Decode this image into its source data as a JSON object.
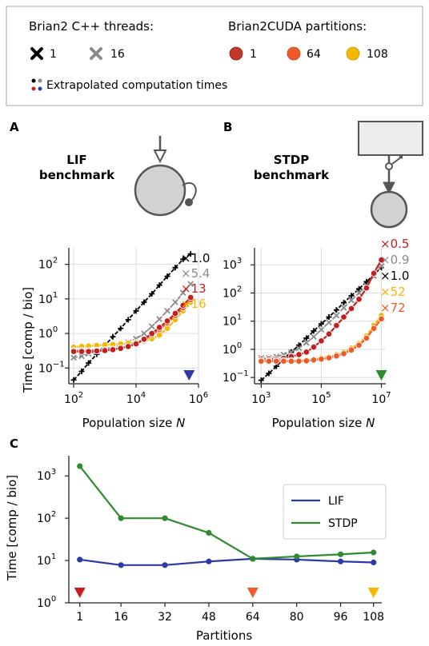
{
  "legend": {
    "cpp_title": "Brian2 C++ threads:",
    "cpp_entries": [
      {
        "label": "1",
        "color": "#000000"
      },
      {
        "label": "16",
        "color": "#8c8c8c"
      }
    ],
    "cuda_title": "Brian2CUDA partitions:",
    "cuda_entries": [
      {
        "label": "1",
        "color": "#c0392b"
      },
      {
        "label": "64",
        "color": "#f05a28"
      },
      {
        "label": "108",
        "color": "#f5b700"
      }
    ],
    "extrapolated_label": "Extrapolated computation times"
  },
  "panels": {
    "A": {
      "letter": "A",
      "title_line1": "LIF",
      "title_line2": "benchmark"
    },
    "B": {
      "letter": "B",
      "title_line1": "STDP",
      "title_line2": "benchmark"
    },
    "C": {
      "letter": "C"
    }
  },
  "colors": {
    "cpp1": "#000000",
    "cpp16": "#8c8c8c",
    "cuda1": "#c41e1e",
    "cuda64": "#f05a28",
    "cuda108": "#f5b700",
    "lif": "#2b3aa8",
    "stdp": "#2e8b2e"
  },
  "chart_data": [
    {
      "id": "A",
      "type": "line",
      "xscale": "log",
      "yscale": "log",
      "xlim": [
        70,
        1000000
      ],
      "ylim": [
        0.035,
        300
      ],
      "xticks": [
        {
          "v": 100,
          "base": "10",
          "exp": "2"
        },
        {
          "v": 10000,
          "base": "10",
          "exp": "4"
        },
        {
          "v": 1000000,
          "base": "10",
          "exp": "6"
        }
      ],
      "yticks": [
        {
          "v": 0.1,
          "base": "10",
          "exp": "−1"
        },
        {
          "v": 1,
          "base": "10",
          "exp": "0"
        },
        {
          "v": 10,
          "base": "10",
          "exp": "1"
        },
        {
          "v": 100,
          "base": "10",
          "exp": "2"
        }
      ],
      "ylabel": "Time [comp / bio]",
      "xlabel_main": "Population size ",
      "xlabel_var": "N",
      "grid": true,
      "marker_triangle": {
        "x": 500000,
        "color": "#2b3aa8"
      },
      "series": [
        {
          "key": "cpp1",
          "marker": "plus",
          "x": [
            100,
            180,
            300,
            550,
            1000,
            1800,
            3200,
            5600,
            10000,
            18000,
            32000,
            56000,
            100000,
            180000,
            320000,
            560000
          ],
          "y": [
            0.045,
            0.08,
            0.14,
            0.25,
            0.45,
            0.8,
            1.4,
            2.5,
            4.5,
            8,
            14,
            25,
            45,
            80,
            140,
            200
          ]
        },
        {
          "key": "cpp16",
          "marker": "x",
          "x": [
            100,
            180,
            300,
            550,
            1000,
            1800,
            3200,
            5600,
            10000,
            18000,
            32000,
            56000,
            100000,
            180000,
            320000,
            560000
          ],
          "y": [
            0.2,
            0.22,
            0.26,
            0.3,
            0.35,
            0.4,
            0.45,
            0.55,
            0.7,
            1.0,
            1.6,
            2.6,
            4.5,
            8,
            15,
            27
          ]
        },
        {
          "key": "cuda108",
          "marker": "circle",
          "x": [
            100,
            180,
            300,
            550,
            1000,
            1800,
            3200,
            5600,
            10000,
            18000,
            32000,
            56000,
            100000,
            180000,
            320000,
            560000
          ],
          "y": [
            0.4,
            0.42,
            0.43,
            0.45,
            0.47,
            0.48,
            0.5,
            0.52,
            0.55,
            0.6,
            0.7,
            0.9,
            1.4,
            2.5,
            4.5,
            8
          ]
        },
        {
          "key": "cuda64",
          "marker": "circle",
          "x": [
            100,
            180,
            300,
            550,
            1000,
            1800,
            3200,
            5600,
            10000,
            18000,
            32000,
            56000,
            100000,
            180000,
            320000,
            560000
          ],
          "y": [
            0.32,
            0.32,
            0.32,
            0.33,
            0.34,
            0.35,
            0.38,
            0.42,
            0.5,
            0.65,
            0.9,
            1.3,
            2.0,
            3.3,
            5.5,
            9.5
          ]
        },
        {
          "key": "cuda1",
          "marker": "circle",
          "x": [
            100,
            180,
            300,
            550,
            1000,
            1800,
            3200,
            5600,
            10000,
            18000,
            32000,
            56000,
            100000,
            180000,
            320000,
            560000
          ],
          "y": [
            0.3,
            0.3,
            0.3,
            0.31,
            0.32,
            0.34,
            0.37,
            0.42,
            0.5,
            0.68,
            1.0,
            1.5,
            2.3,
            3.8,
            6.5,
            11
          ]
        }
      ],
      "speedup_labels": [
        {
          "text": "×1.0",
          "color": "#000000"
        },
        {
          "text": "×5.4",
          "color": "#8c8c8c"
        },
        {
          "text": "×13",
          "color": "#c41e1e"
        },
        {
          "text": "×16",
          "color": "#f5b700"
        }
      ]
    },
    {
      "id": "B",
      "type": "line",
      "xscale": "log",
      "yscale": "log",
      "xlim": [
        600,
        14000000
      ],
      "ylim": [
        0.06,
        4000
      ],
      "xticks": [
        {
          "v": 1000,
          "base": "10",
          "exp": "3"
        },
        {
          "v": 100000,
          "base": "10",
          "exp": "5"
        },
        {
          "v": 10000000,
          "base": "10",
          "exp": "7"
        }
      ],
      "yticks": [
        {
          "v": 0.1,
          "base": "10",
          "exp": "−1"
        },
        {
          "v": 1,
          "base": "10",
          "exp": "0"
        },
        {
          "v": 10,
          "base": "10",
          "exp": "1"
        },
        {
          "v": 100,
          "base": "10",
          "exp": "2"
        },
        {
          "v": 1000,
          "base": "10",
          "exp": "3"
        }
      ],
      "xlabel_main": "Population size ",
      "xlabel_var": "N",
      "grid": true,
      "marker_triangle": {
        "x": 10000000,
        "color": "#2e8b2e"
      },
      "series": [
        {
          "key": "cpp1",
          "marker": "plus",
          "x": [
            1000,
            1800,
            3200,
            5600,
            10000,
            18000,
            32000,
            56000,
            100000,
            180000,
            320000,
            560000,
            1000000,
            1800000,
            3200000,
            5600000,
            10000000
          ],
          "y": [
            0.08,
            0.14,
            0.25,
            0.45,
            0.8,
            1.4,
            2.5,
            4.5,
            8,
            14,
            25,
            45,
            80,
            140,
            250,
            450,
            800
          ]
        },
        {
          "key": "cpp16",
          "marker": "x",
          "x": [
            1000,
            1800,
            3200,
            5600,
            10000,
            18000,
            32000,
            56000,
            100000,
            180000,
            320000,
            560000,
            1000000,
            1800000,
            3200000,
            5600000,
            10000000
          ],
          "y": [
            0.5,
            0.5,
            0.55,
            0.65,
            0.8,
            1.1,
            1.7,
            2.8,
            5,
            9,
            16,
            30,
            55,
            100,
            180,
            400,
            900
          ]
        },
        {
          "key": "cuda1",
          "marker": "circle",
          "x": [
            1000,
            1800,
            3200,
            5600,
            10000,
            18000,
            32000,
            56000,
            100000,
            180000,
            320000,
            560000,
            1000000,
            1800000,
            3200000,
            5600000,
            10000000
          ],
          "y": [
            0.45,
            0.45,
            0.45,
            0.48,
            0.55,
            0.65,
            0.8,
            1.2,
            2,
            3.5,
            7,
            14,
            28,
            60,
            150,
            500,
            1500
          ]
        },
        {
          "key": "cuda108",
          "marker": "circle",
          "x": [
            1000,
            1800,
            3200,
            5600,
            10000,
            18000,
            32000,
            56000,
            100000,
            180000,
            320000,
            560000,
            1000000,
            1800000,
            3200000,
            5600000,
            10000000
          ],
          "y": [
            0.4,
            0.4,
            0.4,
            0.4,
            0.4,
            0.4,
            0.42,
            0.45,
            0.5,
            0.55,
            0.65,
            0.8,
            1.1,
            1.6,
            3,
            7,
            16
          ]
        },
        {
          "key": "cuda64",
          "marker": "circle",
          "x": [
            1000,
            1800,
            3200,
            5600,
            10000,
            18000,
            32000,
            56000,
            100000,
            180000,
            320000,
            560000,
            1000000,
            1800000,
            3200000,
            5600000,
            10000000
          ],
          "y": [
            0.38,
            0.38,
            0.38,
            0.38,
            0.38,
            0.38,
            0.39,
            0.42,
            0.45,
            0.5,
            0.58,
            0.7,
            0.95,
            1.4,
            2.5,
            5.5,
            12
          ]
        }
      ],
      "speedup_labels": [
        {
          "text": "×0.5",
          "color": "#c41e1e"
        },
        {
          "text": "×0.9",
          "color": "#8c8c8c"
        },
        {
          "text": "×1.0",
          "color": "#000000"
        },
        {
          "text": "×52",
          "color": "#f5b700"
        },
        {
          "text": "×72",
          "color": "#f05a28"
        }
      ]
    },
    {
      "id": "C",
      "type": "line",
      "xscale": "linear",
      "yscale": "log",
      "xlim": [
        -3,
        111
      ],
      "ylim": [
        1,
        3000
      ],
      "xticks": [
        {
          "v": 1,
          "label": "1"
        },
        {
          "v": 16,
          "label": "16"
        },
        {
          "v": 32,
          "label": "32"
        },
        {
          "v": 48,
          "label": "48"
        },
        {
          "v": 64,
          "label": "64"
        },
        {
          "v": 80,
          "label": "80"
        },
        {
          "v": 96,
          "label": "96"
        },
        {
          "v": 108,
          "label": "108"
        }
      ],
      "yticks": [
        {
          "v": 1,
          "base": "10",
          "exp": "0"
        },
        {
          "v": 10,
          "base": "10",
          "exp": "1"
        },
        {
          "v": 100,
          "base": "10",
          "exp": "2"
        },
        {
          "v": 1000,
          "base": "10",
          "exp": "3"
        }
      ],
      "ylabel": "Time [comp / bio]",
      "xlabel": "Partitions",
      "grid": false,
      "legend_position": "top-right",
      "series": [
        {
          "name": "LIF",
          "key": "lif",
          "x": [
            1,
            16,
            32,
            48,
            64,
            80,
            96,
            108
          ],
          "y": [
            10.5,
            7.8,
            7.8,
            9.5,
            11,
            10.5,
            9.5,
            9
          ]
        },
        {
          "name": "STDP",
          "key": "stdp",
          "x": [
            1,
            16,
            32,
            48,
            64,
            80,
            96,
            108
          ],
          "y": [
            1700,
            100,
            100,
            45,
            11,
            12.5,
            14,
            15.5
          ]
        }
      ],
      "triangles": [
        {
          "x": 1,
          "color": "#c41e1e"
        },
        {
          "x": 64,
          "color": "#f05a28"
        },
        {
          "x": 108,
          "color": "#f5b700"
        }
      ]
    }
  ]
}
